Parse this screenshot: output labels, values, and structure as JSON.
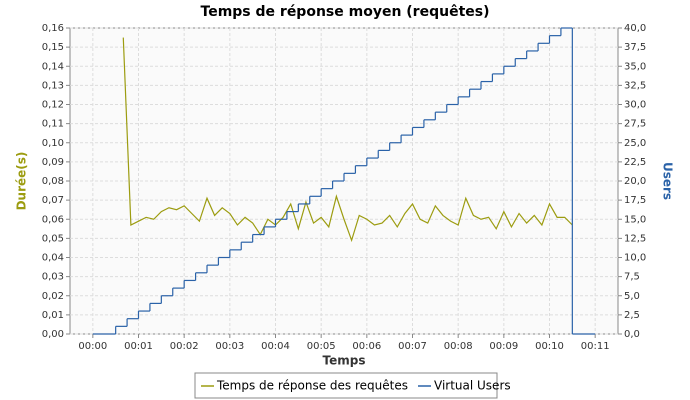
{
  "chart_data": {
    "type": "line",
    "title": "Temps de réponse moyen (requêtes)",
    "x_label": "Temps",
    "y_label": "Durée(s)",
    "y2_label": "Users",
    "grid": true,
    "legend": "bottom",
    "xlim": [
      -30,
      690
    ],
    "xticks": [
      {
        "value": 0,
        "label": "00:00"
      },
      {
        "value": 60,
        "label": "00:01"
      },
      {
        "value": 120,
        "label": "00:02"
      },
      {
        "value": 180,
        "label": "00:03"
      },
      {
        "value": 240,
        "label": "00:04"
      },
      {
        "value": 300,
        "label": "00:05"
      },
      {
        "value": 360,
        "label": "00:06"
      },
      {
        "value": 420,
        "label": "00:07"
      },
      {
        "value": 480,
        "label": "00:08"
      },
      {
        "value": 540,
        "label": "00:09"
      },
      {
        "value": 600,
        "label": "00:10"
      },
      {
        "value": 660,
        "label": "00:11"
      }
    ],
    "ylim": [
      0,
      0.16
    ],
    "yticks": [
      {
        "value": 0,
        "label": "0,00"
      },
      {
        "value": 0.01,
        "label": "0,01"
      },
      {
        "value": 0.02,
        "label": "0,02"
      },
      {
        "value": 0.03,
        "label": "0,03"
      },
      {
        "value": 0.04,
        "label": "0,04"
      },
      {
        "value": 0.05,
        "label": "0,05"
      },
      {
        "value": 0.06,
        "label": "0,06"
      },
      {
        "value": 0.07,
        "label": "0,07"
      },
      {
        "value": 0.08,
        "label": "0,08"
      },
      {
        "value": 0.09,
        "label": "0,09"
      },
      {
        "value": 0.1,
        "label": "0,10"
      },
      {
        "value": 0.11,
        "label": "0,11"
      },
      {
        "value": 0.12,
        "label": "0,12"
      },
      {
        "value": 0.13,
        "label": "0,13"
      },
      {
        "value": 0.14,
        "label": "0,14"
      },
      {
        "value": 0.15,
        "label": "0,15"
      },
      {
        "value": 0.16,
        "label": "0,16"
      }
    ],
    "y2lim": [
      0,
      40
    ],
    "y2ticks": [
      {
        "value": 0,
        "label": "0,0"
      },
      {
        "value": 2.5,
        "label": "2,5"
      },
      {
        "value": 5,
        "label": "5,0"
      },
      {
        "value": 7.5,
        "label": "7,5"
      },
      {
        "value": 10,
        "label": "10,0"
      },
      {
        "value": 12.5,
        "label": "12,5"
      },
      {
        "value": 15,
        "label": "15,0"
      },
      {
        "value": 17.5,
        "label": "17,5"
      },
      {
        "value": 20,
        "label": "20,0"
      },
      {
        "value": 22.5,
        "label": "22,5"
      },
      {
        "value": 25,
        "label": "25,0"
      },
      {
        "value": 27.5,
        "label": "27,5"
      },
      {
        "value": 30,
        "label": "30,0"
      },
      {
        "value": 32.5,
        "label": "32,5"
      },
      {
        "value": 35,
        "label": "35,0"
      },
      {
        "value": 37.5,
        "label": "37,5"
      },
      {
        "value": 40,
        "label": "40,0"
      }
    ],
    "series": [
      {
        "name": "Temps de réponse des requêtes",
        "color": "#9c9c10",
        "x": [
          40,
          50,
          60,
          70,
          80,
          90,
          100,
          110,
          120,
          130,
          140,
          150,
          160,
          170,
          180,
          190,
          200,
          210,
          220,
          230,
          240,
          250,
          260,
          270,
          280,
          290,
          300,
          310,
          320,
          330,
          340,
          350,
          360,
          370,
          380,
          390,
          400,
          410,
          420,
          430,
          440,
          450,
          460,
          470,
          480,
          490,
          500,
          510,
          520,
          530,
          540,
          550,
          560,
          570,
          580,
          590,
          600,
          610,
          620,
          630
        ],
        "values": [
          0.155,
          0.057,
          0.059,
          0.061,
          0.06,
          0.064,
          0.066,
          0.065,
          0.067,
          0.063,
          0.059,
          0.071,
          0.062,
          0.066,
          0.063,
          0.057,
          0.061,
          0.058,
          0.052,
          0.06,
          0.057,
          0.061,
          0.068,
          0.055,
          0.069,
          0.058,
          0.061,
          0.056,
          0.072,
          0.06,
          0.049,
          0.062,
          0.06,
          0.057,
          0.058,
          0.062,
          0.056,
          0.063,
          0.068,
          0.06,
          0.058,
          0.067,
          0.062,
          0.059,
          0.057,
          0.071,
          0.062,
          0.06,
          0.061,
          0.055,
          0.064,
          0.056,
          0.063,
          0.058,
          0.062,
          0.057,
          0.068,
          0.061,
          0.061,
          0.057
        ]
      },
      {
        "name": "Virtual Users",
        "color": "#2a62a8",
        "axis": "y2",
        "step": "after",
        "x": [
          0,
          30,
          45,
          60,
          75,
          90,
          105,
          120,
          135,
          150,
          165,
          180,
          195,
          210,
          225,
          240,
          255,
          270,
          285,
          300,
          315,
          330,
          345,
          360,
          375,
          390,
          405,
          420,
          435,
          450,
          465,
          480,
          495,
          510,
          525,
          540,
          555,
          570,
          585,
          600,
          615,
          630,
          660
        ],
        "values": [
          0,
          1,
          2,
          3,
          4,
          5,
          6,
          7,
          8,
          9,
          10,
          11,
          12,
          13,
          14,
          15,
          16,
          17,
          18,
          19,
          20,
          21,
          22,
          23,
          24,
          25,
          26,
          27,
          28,
          29,
          30,
          31,
          32,
          33,
          34,
          35,
          36,
          37,
          38,
          39,
          40,
          0,
          0
        ]
      }
    ]
  }
}
